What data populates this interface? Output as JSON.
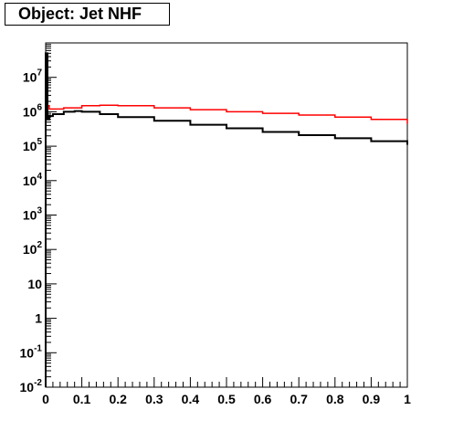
{
  "title": "Object: Jet NHF",
  "chart_data": {
    "type": "line",
    "title": "Object: Jet NHF",
    "xlabel": "",
    "ylabel": "",
    "xlim": [
      0,
      1
    ],
    "ylim": [
      0.01,
      100000000
    ],
    "yscale": "log",
    "grid": false,
    "x_ticks": [
      "0",
      "0.1",
      "0.2",
      "0.3",
      "0.4",
      "0.5",
      "0.6",
      "0.7",
      "0.8",
      "0.9",
      "1"
    ],
    "y_ticks": [
      {
        "base": "10",
        "exp": "-2",
        "value": 0.01
      },
      {
        "base": "10",
        "exp": "-1",
        "value": 0.1
      },
      {
        "base": "1",
        "exp": "",
        "value": 1
      },
      {
        "base": "10",
        "exp": "",
        "value": 10
      },
      {
        "base": "10",
        "exp": "2",
        "value": 100
      },
      {
        "base": "10",
        "exp": "3",
        "value": 1000
      },
      {
        "base": "10",
        "exp": "4",
        "value": 10000
      },
      {
        "base": "10",
        "exp": "5",
        "value": 100000
      },
      {
        "base": "10",
        "exp": "6",
        "value": 1000000
      },
      {
        "base": "10",
        "exp": "7",
        "value": 10000000
      }
    ],
    "series": [
      {
        "color": "#ff0000",
        "x": [
          0.0,
          0.005,
          0.01,
          0.02,
          0.05,
          0.1,
          0.15,
          0.2,
          0.3,
          0.4,
          0.5,
          0.6,
          0.7,
          0.8,
          0.9,
          1.0
        ],
        "y": [
          5000000,
          1500000,
          1200000,
          1200000,
          1300000,
          1500000,
          1550000,
          1500000,
          1300000,
          1150000,
          1000000,
          900000,
          800000,
          700000,
          600000,
          450000
        ]
      },
      {
        "color": "#000000",
        "x": [
          0.0,
          0.005,
          0.01,
          0.02,
          0.05,
          0.08,
          0.1,
          0.15,
          0.2,
          0.3,
          0.4,
          0.5,
          0.6,
          0.7,
          0.8,
          0.9,
          1.0
        ],
        "y": [
          50000000,
          600000,
          750000,
          850000,
          1000000,
          1050000,
          1000000,
          850000,
          700000,
          550000,
          420000,
          330000,
          260000,
          210000,
          170000,
          140000,
          110000
        ]
      }
    ]
  }
}
